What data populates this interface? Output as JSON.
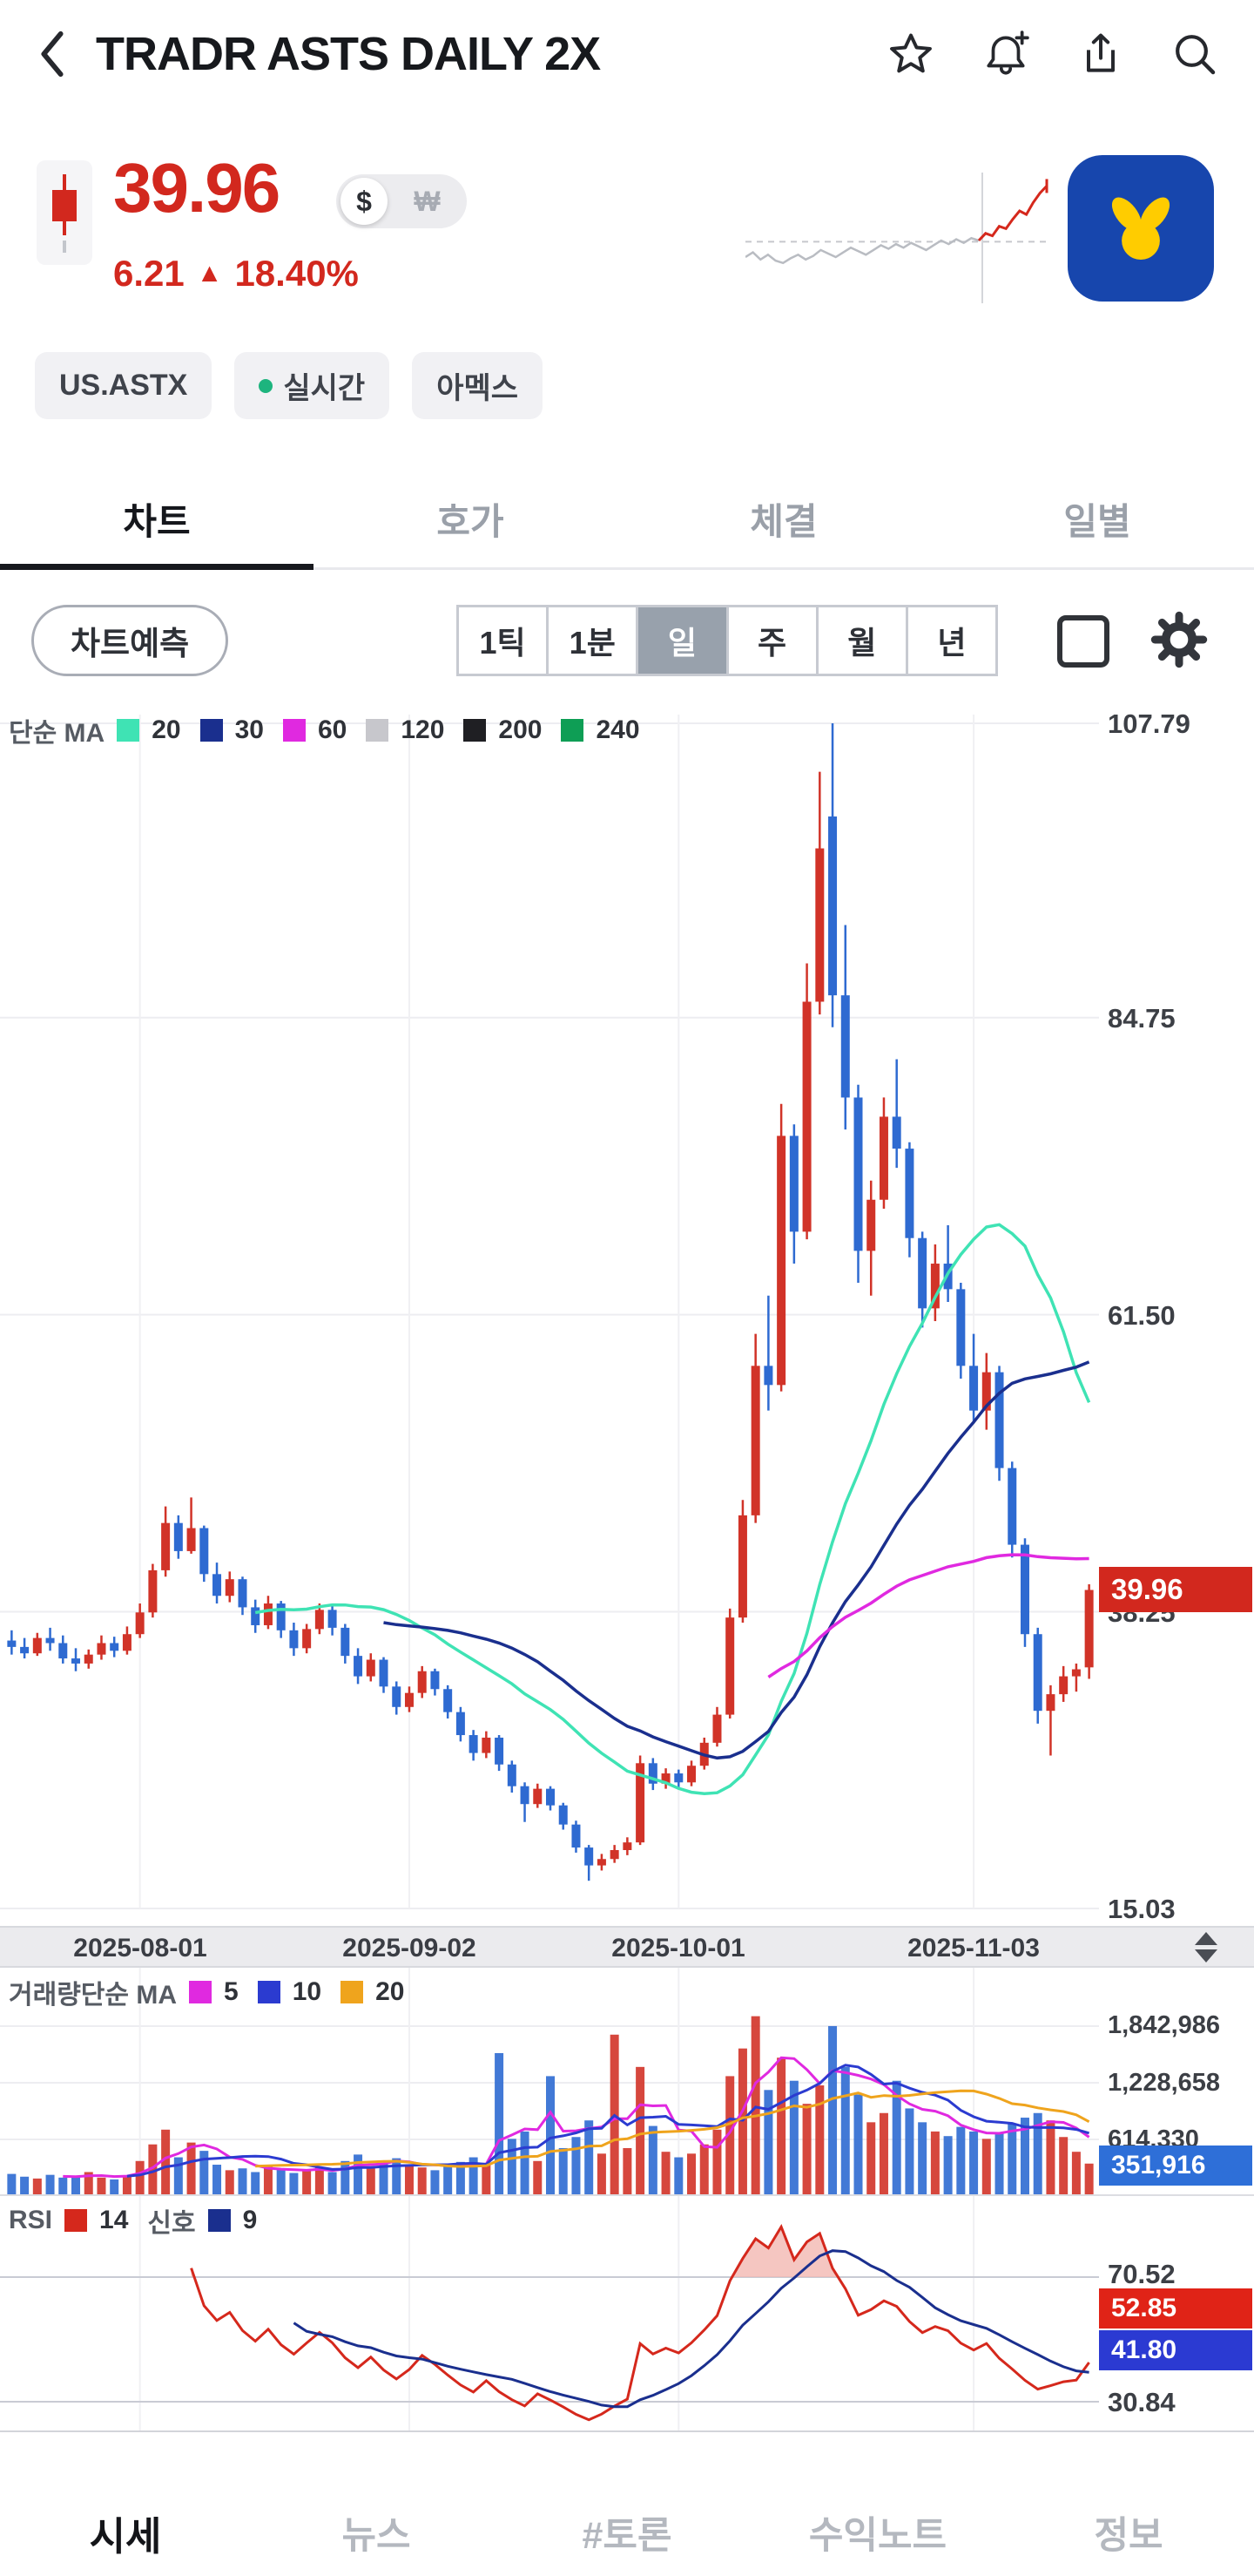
{
  "header": {
    "title": "TRADR ASTS DAILY 2X"
  },
  "icons": {
    "back": "chevron-left",
    "favorite": "star-outline",
    "alerts": "bell-plus",
    "share": "share-up-arrow",
    "search": "magnifier",
    "chart_style": "square-outline",
    "settings": "gear",
    "axis_expand": "up-down-triangles",
    "realtime_dot": "green-dot"
  },
  "quote": {
    "price": "39.96",
    "currency_primary": "$",
    "currency_secondary": "₩",
    "change": "6.21",
    "change_arrow": "▲",
    "change_pct": "18.40%",
    "up_color": "#d2281e"
  },
  "tags": {
    "exchange_code": "US.ASTX",
    "realtime": "실시간",
    "market": "아멕스"
  },
  "tabs": [
    "차트",
    "호가",
    "체결",
    "일별"
  ],
  "toolbar": {
    "predict_label": "차트예측",
    "timeframes": [
      "1틱",
      "1분",
      "일",
      "주",
      "월",
      "년"
    ],
    "selected_timeframe": "일"
  },
  "main_legend": {
    "title": "단순 MA",
    "items": [
      {
        "label": "20",
        "color": "#3fe3b4"
      },
      {
        "label": "30",
        "color": "#1a2f8e"
      },
      {
        "label": "60",
        "color": "#e029e0"
      },
      {
        "label": "120",
        "color": "#c7c7cc"
      },
      {
        "label": "200",
        "color": "#1f1f23"
      },
      {
        "label": "240",
        "color": "#0e9e55"
      }
    ]
  },
  "price_axis": [
    "107.79",
    "84.75",
    "61.50",
    "38.25",
    "15.03"
  ],
  "price_tag": {
    "value": "39.96",
    "color": "#d2281e"
  },
  "date_axis": [
    "2025-08-01",
    "2025-09-02",
    "2025-10-01",
    "2025-11-03"
  ],
  "volume_legend": {
    "title": "거래량단순 MA",
    "items": [
      {
        "label": "5",
        "color": "#e029e0"
      },
      {
        "label": "10",
        "color": "#2b3bd0"
      },
      {
        "label": "20",
        "color": "#efa41d"
      }
    ]
  },
  "volume_axis": [
    "1,842,986",
    "1,228,658",
    "614,330"
  ],
  "volume_tag": {
    "value": "351,916",
    "color": "#2e6fd8"
  },
  "rsi_legend": {
    "name": "RSI",
    "period": "14",
    "signal_label": "신호",
    "signal_period": "9"
  },
  "rsi_axis": {
    "upper": "70.52",
    "lower": "30.84"
  },
  "rsi_tags": {
    "rsi": {
      "value": "52.85",
      "color": "#e02317"
    },
    "signal": {
      "value": "41.80",
      "color": "#2b3ad2"
    }
  },
  "bottom_nav": [
    "시세",
    "뉴스",
    "#토론",
    "수익노트",
    "정보"
  ],
  "sparkline": {
    "gray": [
      0.36,
      0.4,
      0.34,
      0.38,
      0.33,
      0.31,
      0.35,
      0.38,
      0.34,
      0.37,
      0.42,
      0.39,
      0.36,
      0.4,
      0.44,
      0.41,
      0.38,
      0.42,
      0.46,
      0.43,
      0.47,
      0.44,
      0.48,
      0.45,
      0.42,
      0.46,
      0.5,
      0.47,
      0.51,
      0.48,
      0.52,
      0.5
    ],
    "red": [
      0.5,
      0.56,
      0.54,
      0.62,
      0.6,
      0.68,
      0.75,
      0.72,
      0.82,
      0.9,
      0.96
    ],
    "baseline": 0.49
  },
  "chart_data": {
    "type": "candlestick",
    "symbol": "TRADR ASTS DAILY 2X",
    "interval": "일 (daily)",
    "last_price": 39.96,
    "prev_close": 33.75,
    "change": 6.21,
    "change_pct": 18.4,
    "up_color": "#d13328",
    "down_color": "#2e6ad1",
    "price_gridlines": [
      107.79,
      84.75,
      61.5,
      38.25,
      15.03
    ],
    "date_ticks": [
      {
        "label": "2025-08-01",
        "index": 10
      },
      {
        "label": "2025-09-02",
        "index": 31
      },
      {
        "label": "2025-10-01",
        "index": 52
      },
      {
        "label": "2025-11-03",
        "index": 75
      }
    ],
    "ma": [
      {
        "period": 20,
        "color": "#3fe3b4"
      },
      {
        "period": 30,
        "color": "#1a2f8e"
      },
      {
        "period": 60,
        "color": "#e029e0"
      }
    ],
    "candles_format": "[open, high, low, close]",
    "candles": [
      [
        36.0,
        36.8,
        34.9,
        35.5
      ],
      [
        35.5,
        36.2,
        34.6,
        35.0
      ],
      [
        35.0,
        36.6,
        34.8,
        36.2
      ],
      [
        36.2,
        37.0,
        35.2,
        35.8
      ],
      [
        35.8,
        36.4,
        34.2,
        34.6
      ],
      [
        34.6,
        35.4,
        33.6,
        34.2
      ],
      [
        34.2,
        35.3,
        33.8,
        34.9
      ],
      [
        34.9,
        36.4,
        34.5,
        35.8
      ],
      [
        35.8,
        36.3,
        34.7,
        35.2
      ],
      [
        35.2,
        37.1,
        34.9,
        36.5
      ],
      [
        36.5,
        38.9,
        36.2,
        38.2
      ],
      [
        38.2,
        42.0,
        37.8,
        41.5
      ],
      [
        41.5,
        46.5,
        41.0,
        45.2
      ],
      [
        45.2,
        45.8,
        42.4,
        43.0
      ],
      [
        43.0,
        47.2,
        42.8,
        44.8
      ],
      [
        44.8,
        45.0,
        40.6,
        41.2
      ],
      [
        41.2,
        42.1,
        38.9,
        39.5
      ],
      [
        39.5,
        41.4,
        39.0,
        40.8
      ],
      [
        40.8,
        41.0,
        38.0,
        38.6
      ],
      [
        38.6,
        39.2,
        36.6,
        37.2
      ],
      [
        37.2,
        39.5,
        36.9,
        38.9
      ],
      [
        38.9,
        39.1,
        36.2,
        36.8
      ],
      [
        36.8,
        37.4,
        34.8,
        35.4
      ],
      [
        35.4,
        37.3,
        35.0,
        36.9
      ],
      [
        36.9,
        38.9,
        36.5,
        38.4
      ],
      [
        38.4,
        38.7,
        36.4,
        37.0
      ],
      [
        37.0,
        37.3,
        34.2,
        34.8
      ],
      [
        34.8,
        35.4,
        32.6,
        33.2
      ],
      [
        33.2,
        35.0,
        32.8,
        34.5
      ],
      [
        34.5,
        34.7,
        31.9,
        32.4
      ],
      [
        32.4,
        32.8,
        30.2,
        30.8
      ],
      [
        30.8,
        32.4,
        30.4,
        31.9
      ],
      [
        31.9,
        34.0,
        31.5,
        33.6
      ],
      [
        33.6,
        33.8,
        31.7,
        32.2
      ],
      [
        32.2,
        32.5,
        29.9,
        30.4
      ],
      [
        30.4,
        30.8,
        28.1,
        28.6
      ],
      [
        28.6,
        29.0,
        26.6,
        27.2
      ],
      [
        27.2,
        28.9,
        26.8,
        28.4
      ],
      [
        28.4,
        28.6,
        25.8,
        26.3
      ],
      [
        26.3,
        26.6,
        24.1,
        24.6
      ],
      [
        24.6,
        24.9,
        21.8,
        23.2
      ],
      [
        23.2,
        24.8,
        22.9,
        24.4
      ],
      [
        24.4,
        24.6,
        22.7,
        23.1
      ],
      [
        23.1,
        23.3,
        21.2,
        21.6
      ],
      [
        21.6,
        21.9,
        19.4,
        19.8
      ],
      [
        19.8,
        20.0,
        17.2,
        18.4
      ],
      [
        18.4,
        19.3,
        18.0,
        18.9
      ],
      [
        18.9,
        20.0,
        18.6,
        19.6
      ],
      [
        19.6,
        20.6,
        19.2,
        20.2
      ],
      [
        20.2,
        27.0,
        20.0,
        26.4
      ],
      [
        26.4,
        26.8,
        24.3,
        24.8
      ],
      [
        24.8,
        26.0,
        24.4,
        25.6
      ],
      [
        25.6,
        25.9,
        24.4,
        24.9
      ],
      [
        24.9,
        26.6,
        24.6,
        26.2
      ],
      [
        26.2,
        28.4,
        25.9,
        28.0
      ],
      [
        28.0,
        30.8,
        27.7,
        30.2
      ],
      [
        30.2,
        38.5,
        29.9,
        37.8
      ],
      [
        37.8,
        47.0,
        37.4,
        45.8
      ],
      [
        45.8,
        60.0,
        45.2,
        57.5
      ],
      [
        57.5,
        63.0,
        54.0,
        56.0
      ],
      [
        56.0,
        78.0,
        55.5,
        75.5
      ],
      [
        75.5,
        76.4,
        65.5,
        68.0
      ],
      [
        68.0,
        89.0,
        67.4,
        86.0
      ],
      [
        86.0,
        104.0,
        85.0,
        98.0
      ],
      [
        100.5,
        107.79,
        84.0,
        86.5
      ],
      [
        86.5,
        92.0,
        76.0,
        78.5
      ],
      [
        78.5,
        79.5,
        64.0,
        66.5
      ],
      [
        66.5,
        72.0,
        63.0,
        70.5
      ],
      [
        70.5,
        78.5,
        69.8,
        77.0
      ],
      [
        77.0,
        81.5,
        73.0,
        74.5
      ],
      [
        74.5,
        75.0,
        66.0,
        67.5
      ],
      [
        67.5,
        68.0,
        60.5,
        62.0
      ],
      [
        62.0,
        67.0,
        61.0,
        65.5
      ],
      [
        65.5,
        68.5,
        62.5,
        63.5
      ],
      [
        63.5,
        64.0,
        56.5,
        57.5
      ],
      [
        57.5,
        60.0,
        53.0,
        54.0
      ],
      [
        54.0,
        58.5,
        52.5,
        57.0
      ],
      [
        57.0,
        57.5,
        48.5,
        49.5
      ],
      [
        49.5,
        50.0,
        42.5,
        43.5
      ],
      [
        43.5,
        44.0,
        35.5,
        36.5
      ],
      [
        36.5,
        37.0,
        29.5,
        30.5
      ],
      [
        30.5,
        32.5,
        27.0,
        31.8
      ],
      [
        31.8,
        34.0,
        31.2,
        33.2
      ],
      [
        33.2,
        34.2,
        32.0,
        33.75
      ],
      [
        33.9,
        40.4,
        33.0,
        39.96
      ]
    ],
    "volumes": [
      240000,
      210000,
      190000,
      230000,
      200000,
      220000,
      260000,
      200000,
      180000,
      220000,
      380000,
      560000,
      720000,
      420000,
      580000,
      490000,
      340000,
      280000,
      300000,
      260000,
      330000,
      290000,
      250000,
      270000,
      310000,
      260000,
      380000,
      450000,
      300000,
      360000,
      410000,
      330000,
      310000,
      280000,
      320000,
      370000,
      420000,
      350000,
      1550000,
      620000,
      700000,
      380000,
      1300000,
      520000,
      640000,
      820000,
      460000,
      1750000,
      520000,
      1400000,
      760000,
      480000,
      420000,
      460000,
      560000,
      720000,
      1300000,
      1600000,
      1950000,
      1150000,
      1500000,
      1250000,
      1000000,
      1200000,
      1842986,
      1400000,
      1100000,
      800000,
      900000,
      1250000,
      950000,
      800000,
      700000,
      650000,
      750000,
      700000,
      620000,
      680000,
      780000,
      850000,
      900000,
      820000,
      640000,
      480000,
      351916
    ],
    "volume_gridlines": [
      1842986,
      1228658,
      614330
    ],
    "volume_scale_max": 2400000,
    "last_volume": 351916,
    "volume_ma": [
      {
        "period": 5,
        "color": "#e029e0"
      },
      {
        "period": 10,
        "color": "#2b3bd0"
      },
      {
        "period": 20,
        "color": "#efa41d"
      }
    ],
    "rsi": {
      "period": 14,
      "signal": 9,
      "color": "#d5281c",
      "signal_color": "#1a2f8e",
      "last": 52.85,
      "signal_last": 41.8
    },
    "rsi_gridlines": [
      70.52,
      30.84
    ]
  }
}
